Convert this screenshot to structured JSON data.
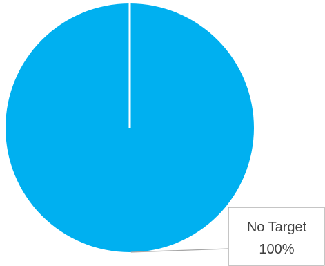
{
  "chart_data": {
    "type": "pie",
    "title": "",
    "slices": [
      {
        "label": "No Target",
        "value": 100,
        "value_label": "100%",
        "color": "#00B0F0"
      }
    ],
    "legend": "none",
    "data_label_style": "callout"
  }
}
